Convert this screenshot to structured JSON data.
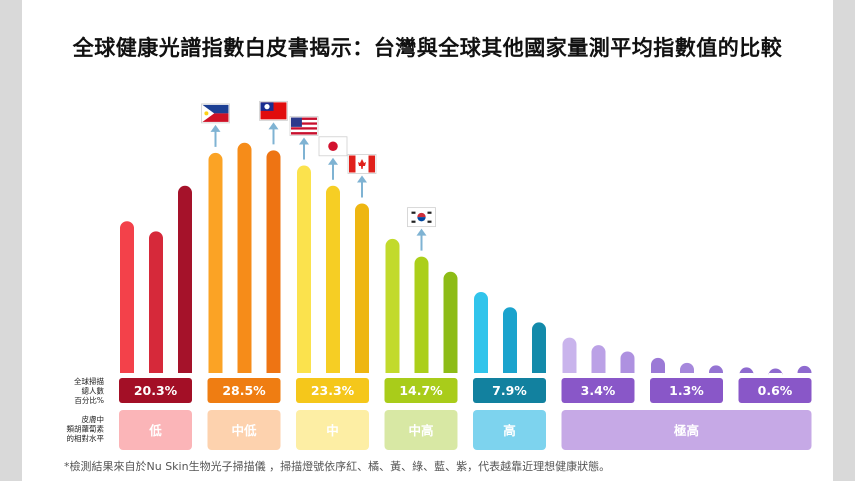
{
  "title": "全球健康光譜指數白皮書揭示：台灣與全球其他國家量測平均指數值的比較",
  "row_labels": {
    "pct": [
      "全球掃描",
      "總人數",
      "百分比%"
    ],
    "level": [
      "皮膚中",
      "類胡蘿蔔素",
      "的相對水平"
    ]
  },
  "footnote": "*檢測結果來自於Nu Skin生物光子掃描儀 ，掃描燈號依序紅、橘、黃、綠、藍、紫，代表越靠近理想健康狀態。",
  "chart_data": {
    "type": "bar",
    "title": "全球健康光譜指數白皮書揭示：台灣與全球其他國家量測平均指數值的比較",
    "ylim": [
      0,
      100
    ],
    "grid": false,
    "legend": "none",
    "values": [
      {
        "group": 0,
        "value": 60,
        "color": "#f3414a",
        "flag": null
      },
      {
        "group": 0,
        "value": 56,
        "color": "#d6293a",
        "flag": null
      },
      {
        "group": 0,
        "value": 74,
        "color": "#a5122a",
        "flag": null
      },
      {
        "group": 1,
        "value": 87,
        "color": "#fba325",
        "flag": "philippines-flag"
      },
      {
        "group": 1,
        "value": 91,
        "color": "#f68c19",
        "flag": null
      },
      {
        "group": 1,
        "value": 88,
        "color": "#ee7413",
        "flag": "taiwan-flag"
      },
      {
        "group": 2,
        "value": 82,
        "color": "#fbe24d",
        "flag": "usa-flag"
      },
      {
        "group": 2,
        "value": 74,
        "color": "#f6ce24",
        "flag": "japan-flag"
      },
      {
        "group": 2,
        "value": 67,
        "color": "#eeb611",
        "flag": "canada-flag"
      },
      {
        "group": 3,
        "value": 53,
        "color": "#c2da2c",
        "flag": null
      },
      {
        "group": 3,
        "value": 46,
        "color": "#abcf1a",
        "flag": "korea-flag"
      },
      {
        "group": 3,
        "value": 40,
        "color": "#8dbc16",
        "flag": null
      },
      {
        "group": 4,
        "value": 32,
        "color": "#31c4eb",
        "flag": null
      },
      {
        "group": 4,
        "value": 26,
        "color": "#1ba3cd",
        "flag": null
      },
      {
        "group": 4,
        "value": 20,
        "color": "#138aaa",
        "flag": null
      },
      {
        "group": 5,
        "value": 14,
        "color": "#c9b4ec",
        "flag": null
      },
      {
        "group": 5,
        "value": 11,
        "color": "#bba1e6",
        "flag": null
      },
      {
        "group": 5,
        "value": 8.5,
        "color": "#ae91e0",
        "flag": null
      },
      {
        "group": 6,
        "value": 6,
        "color": "#9b79d6",
        "flag": null
      },
      {
        "group": 6,
        "value": 4,
        "color": "#a688dc",
        "flag": null
      },
      {
        "group": 6,
        "value": 3,
        "color": "#9574d3",
        "flag": null
      },
      {
        "group": 7,
        "value": 2.2,
        "color": "#8e6acf",
        "flag": null
      },
      {
        "group": 7,
        "value": 1.8,
        "color": "#8e6acf",
        "flag": null
      },
      {
        "group": 7,
        "value": 2.8,
        "color": "#8e6acf",
        "flag": null
      }
    ],
    "groups": [
      {
        "pct": "20.3%",
        "level": "低",
        "pct_color": "#a30f26",
        "level_color": "#fbb5b8"
      },
      {
        "pct": "28.5%",
        "level": "中低",
        "pct_color": "#ef7d12",
        "level_color": "#fdd2ae"
      },
      {
        "pct": "23.3%",
        "level": "中",
        "pct_color": "#f5c71b",
        "level_color": "#fdeea4"
      },
      {
        "pct": "14.7%",
        "level": "中高",
        "pct_color": "#a9cc1a",
        "level_color": "#d8e8a4"
      },
      {
        "pct": "7.9%",
        "level": "高",
        "pct_color": "#12819f",
        "level_color": "#7dd3ee"
      },
      {
        "pct": "3.4%",
        "level": "極高",
        "pct_color": "#8957c8",
        "level_color": "#c6a9e6"
      },
      {
        "pct": "1.3%",
        "level": "",
        "pct_color": "#8957c8",
        "level_color": "#c6a9e6"
      },
      {
        "pct": "0.6%",
        "level": "",
        "pct_color": "#8957c8",
        "level_color": "#c6a9e6"
      }
    ],
    "arrow_color": "#7fb3d3"
  }
}
